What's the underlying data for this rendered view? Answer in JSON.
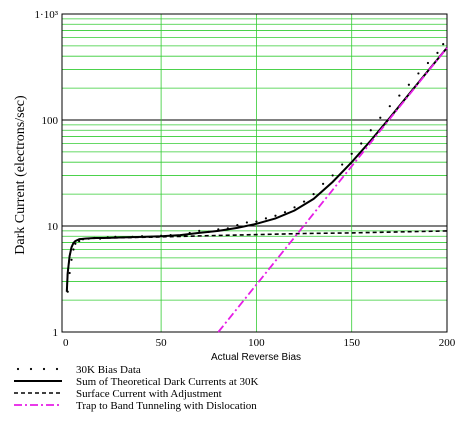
{
  "chart_data": {
    "type": "line",
    "ylabel": "Dark Current (electrons/sec)",
    "xlabel": "Actual Reverse Bias",
    "x_ticks": [
      "0",
      "50",
      "100",
      "150",
      "200"
    ],
    "y_ticks": [
      "1",
      "10",
      "100",
      "1·10³"
    ],
    "xlim": [
      -2,
      200
    ],
    "ylim": [
      1,
      1000
    ],
    "y_scale": "log",
    "grid": true,
    "colors": {
      "grid": "#33cc33",
      "major_grid": "#000000",
      "tunneling": "#e61ee6"
    },
    "series": [
      {
        "name": "30K Bias Data",
        "style": "dots",
        "x": [
          1,
          2,
          3,
          4,
          5,
          7,
          9,
          12,
          15,
          18,
          22,
          26,
          30,
          35,
          40,
          45,
          50,
          55,
          60,
          65,
          70,
          75,
          80,
          85,
          90,
          95,
          100,
          105,
          110,
          115,
          120,
          125,
          130,
          135,
          140,
          145,
          150,
          155,
          160,
          165,
          170,
          175,
          180,
          185,
          190,
          195,
          198
        ],
        "y": [
          2.4,
          3.6,
          4.8,
          6.0,
          6.8,
          7.2,
          7.5,
          7.6,
          7.7,
          7.6,
          7.8,
          7.9,
          7.8,
          7.9,
          8.0,
          7.9,
          8.1,
          8.2,
          8.1,
          8.6,
          9.0,
          8.8,
          9.3,
          9.5,
          10.2,
          10.8,
          11.0,
          11.8,
          12.5,
          13.5,
          15,
          17,
          20,
          25,
          30,
          38,
          48,
          60,
          80,
          105,
          135,
          170,
          215,
          275,
          345,
          430,
          520
        ]
      },
      {
        "name": "Sum of Theoretical Dark Currents at 30K",
        "style": "solid",
        "x": [
          0.5,
          1,
          2,
          3,
          4,
          5,
          7,
          10,
          15,
          20,
          30,
          40,
          50,
          60,
          70,
          80,
          90,
          100,
          110,
          120,
          130,
          140,
          150,
          160,
          170,
          180,
          190,
          200
        ],
        "y": [
          2.4,
          3.6,
          5.2,
          6.3,
          6.9,
          7.2,
          7.5,
          7.6,
          7.7,
          7.7,
          7.8,
          7.9,
          8.0,
          8.2,
          8.6,
          9.0,
          9.6,
          10.5,
          11.8,
          14,
          18,
          26,
          40,
          64,
          105,
          175,
          290,
          480
        ]
      },
      {
        "name": "Surface Current with Adjustment",
        "style": "dashed",
        "x": [
          0.5,
          1,
          2,
          3,
          4,
          5,
          7,
          10,
          20,
          30,
          50,
          75,
          100,
          125,
          150,
          175,
          200
        ],
        "y": [
          2.4,
          3.6,
          5.2,
          6.3,
          6.9,
          7.2,
          7.5,
          7.6,
          7.7,
          7.75,
          7.9,
          8.1,
          8.3,
          8.5,
          8.6,
          8.8,
          9.0
        ]
      },
      {
        "name": "Trap to Band Tunneling with Dislocation",
        "style": "dash-dot",
        "x": [
          80,
          200
        ],
        "y": [
          1,
          480
        ]
      }
    ]
  }
}
